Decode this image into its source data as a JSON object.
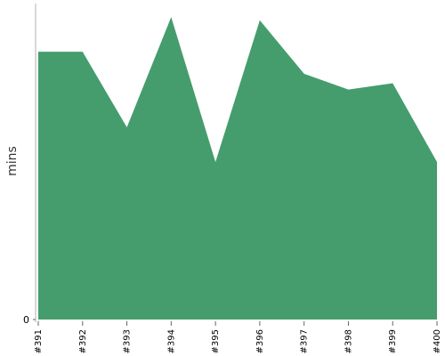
{
  "chart_data": {
    "type": "area",
    "title": "",
    "xlabel": "",
    "ylabel": "mins",
    "categories": [
      "#391",
      "#392",
      "#393",
      "#394",
      "#395",
      "#396",
      "#397",
      "#398",
      "#399",
      "#400"
    ],
    "series": [
      {
        "values": [
          85,
          85,
          61,
          96,
          50,
          95,
          78,
          73,
          75,
          50
        ]
      }
    ],
    "ylim": [
      0,
      100
    ],
    "yticks": [
      "0"
    ],
    "grid": false,
    "legend": "none",
    "colors": {
      "area": "#459d6d",
      "axis": "#b0b0b0",
      "tick": "#666666"
    }
  }
}
